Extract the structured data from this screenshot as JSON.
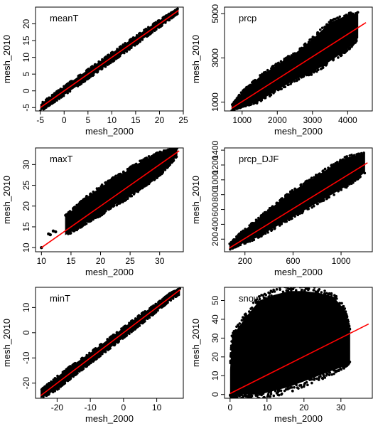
{
  "chart_data": [
    {
      "type": "scatter",
      "title": "meanT",
      "xlabel": "mesh_2000",
      "ylabel": "mesh_2010",
      "xlim": [
        -6,
        25
      ],
      "ylim": [
        -6,
        25
      ],
      "xticks": [
        "-5",
        "0",
        "5",
        "10",
        "15",
        "20",
        "25"
      ],
      "yticks": [
        "-5",
        "0",
        "5",
        "10",
        "15",
        "20"
      ],
      "cloud": [
        [
          -5,
          -6,
          -4
        ],
        [
          -2,
          -3.2,
          -0.8
        ],
        [
          2,
          0.7,
          3.3
        ],
        [
          6,
          4.7,
          7.3
        ],
        [
          10,
          8.7,
          11.3
        ],
        [
          14,
          12.8,
          15.3
        ],
        [
          18,
          17,
          19.2
        ],
        [
          21,
          20.1,
          22
        ],
        [
          24,
          23.3,
          24.6
        ]
      ],
      "trend": [
        [
          -5,
          -5
        ],
        [
          24,
          24
        ]
      ],
      "points_color": "#000000",
      "trend_color": "#ff0000"
    },
    {
      "type": "scatter",
      "title": "prcp",
      "xlabel": "mesh_2000",
      "ylabel": "mesh_2010",
      "xlim": [
        500,
        4700
      ],
      "ylim": [
        600,
        5300
      ],
      "xticks": [
        "1000",
        "2000",
        "3000",
        "4000"
      ],
      "yticks": [
        "1000",
        "3000",
        "5000"
      ],
      "cloud": [
        [
          700,
          620,
          850
        ],
        [
          1000,
          800,
          1450
        ],
        [
          1500,
          1050,
          2150
        ],
        [
          2000,
          1550,
          2700
        ],
        [
          2500,
          2000,
          3200
        ],
        [
          3000,
          2350,
          3850
        ],
        [
          3500,
          2850,
          4600
        ],
        [
          4000,
          3400,
          4950
        ],
        [
          4300,
          3900,
          5000
        ]
      ],
      "trend": [
        [
          700,
          720
        ],
        [
          4520,
          4600
        ]
      ],
      "points_color": "#000000",
      "trend_color": "#ff0000"
    },
    {
      "type": "scatter",
      "title": "maxT",
      "xlabel": "mesh_2000",
      "ylabel": "mesh_2010",
      "xlim": [
        9,
        34
      ],
      "ylim": [
        9,
        34
      ],
      "xticks": [
        "10",
        "15",
        "20",
        "25",
        "30"
      ],
      "yticks": [
        "10",
        "15",
        "20",
        "25",
        "30"
      ],
      "cloud": [
        [
          14,
          13,
          17.5
        ],
        [
          16,
          14.5,
          20
        ],
        [
          18,
          16.5,
          22.5
        ],
        [
          20,
          18,
          24.5
        ],
        [
          22,
          20,
          26.5
        ],
        [
          24,
          21.5,
          28
        ],
        [
          26,
          23.5,
          30
        ],
        [
          28,
          25.5,
          31.5
        ],
        [
          30,
          27.5,
          32.8
        ],
        [
          32,
          30.5,
          33.6
        ],
        [
          33,
          32.2,
          33.8
        ]
      ],
      "trend": [
        [
          10,
          10
        ],
        [
          33.3,
          33.3
        ]
      ],
      "outliers": [
        [
          10,
          10
        ],
        [
          11.2,
          13.3
        ],
        [
          11.5,
          13.1
        ],
        [
          12,
          14
        ],
        [
          12.4,
          13.8
        ]
      ],
      "points_color": "#000000",
      "trend_color": "#ff0000"
    },
    {
      "type": "scatter",
      "title": "prcp_DJF",
      "xlabel": "mesh_2000",
      "ylabel": "mesh_2010",
      "xlim": [
        30,
        1260
      ],
      "ylim": [
        30,
        1430
      ],
      "xticks": [
        "200",
        "600",
        "1000"
      ],
      "yticks": [
        "200",
        "400",
        "600",
        "800",
        "1000",
        "1200",
        "1400"
      ],
      "cloud": [
        [
          70,
          60,
          130
        ],
        [
          150,
          120,
          260
        ],
        [
          300,
          220,
          460
        ],
        [
          450,
          360,
          660
        ],
        [
          600,
          500,
          850
        ],
        [
          750,
          640,
          1000
        ],
        [
          900,
          780,
          1160
        ],
        [
          1050,
          920,
          1300
        ],
        [
          1200,
          1100,
          1360
        ]
      ],
      "trend": [
        [
          70,
          80
        ],
        [
          1220,
          1230
        ]
      ],
      "points_color": "#000000",
      "trend_color": "#ff0000"
    },
    {
      "type": "scatter",
      "title": "minT",
      "xlabel": "mesh_2000",
      "ylabel": "mesh_2010",
      "xlim": [
        -26.5,
        18
      ],
      "ylim": [
        -26,
        18
      ],
      "xticks": [
        "-20",
        "-10",
        "0",
        "10"
      ],
      "yticks": [
        "-20",
        "-10",
        "0",
        "10"
      ],
      "cloud": [
        [
          -25,
          -26,
          -23
        ],
        [
          -20,
          -22.5,
          -17.5
        ],
        [
          -15,
          -17,
          -12.5
        ],
        [
          -10,
          -12,
          -8
        ],
        [
          -5,
          -7,
          -3
        ],
        [
          0,
          -2,
          2
        ],
        [
          5,
          3.2,
          7
        ],
        [
          10,
          8.5,
          11.5
        ],
        [
          14,
          12.8,
          15.5
        ],
        [
          17,
          15.5,
          17.5
        ]
      ],
      "trend": [
        [
          -25,
          -25
        ],
        [
          17,
          17
        ]
      ],
      "points_color": "#000000",
      "trend_color": "#ff0000"
    },
    {
      "type": "scatter",
      "title": "snow_dpth",
      "xlabel": "mesh_2000",
      "ylabel": "mesh_2010",
      "xlim": [
        -1.5,
        38.5
      ],
      "ylim": [
        -2,
        57
      ],
      "xticks": [
        "0",
        "10",
        "20",
        "30"
      ],
      "yticks": [
        "0",
        "10",
        "20",
        "30",
        "40",
        "50"
      ],
      "cloud": [
        [
          0,
          0,
          13
        ],
        [
          0.5,
          0,
          30
        ],
        [
          2,
          0,
          35
        ],
        [
          5,
          0,
          43
        ],
        [
          8,
          0,
          50
        ],
        [
          12,
          2,
          53
        ],
        [
          16,
          4,
          55
        ],
        [
          20,
          7,
          55
        ],
        [
          24,
          10,
          54
        ],
        [
          28,
          13,
          52
        ],
        [
          31,
          15,
          45
        ],
        [
          32.5,
          18,
          34
        ]
      ],
      "trend": [
        [
          0,
          0.5
        ],
        [
          37.5,
          37.5
        ]
      ],
      "points_color": "#000000",
      "trend_color": "#ff0000"
    }
  ]
}
